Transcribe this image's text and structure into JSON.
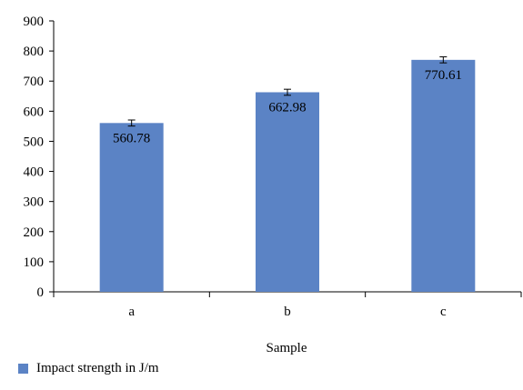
{
  "chart_data": {
    "type": "bar",
    "categories": [
      "a",
      "b",
      "c"
    ],
    "series": [
      {
        "name": "Impact strength in J/m",
        "values": [
          560.78,
          662.98,
          770.61
        ],
        "error": [
          10,
          10,
          10
        ],
        "color": "#5b83c5"
      }
    ],
    "data_labels": [
      "560.78",
      "662.98",
      "770.61"
    ],
    "xlabel": "Sample",
    "ylabel": "",
    "ylim": [
      0,
      900
    ],
    "yticks": [
      0,
      100,
      200,
      300,
      400,
      500,
      600,
      700,
      800,
      900
    ],
    "grid": false,
    "legend_position": "bottom-left"
  }
}
